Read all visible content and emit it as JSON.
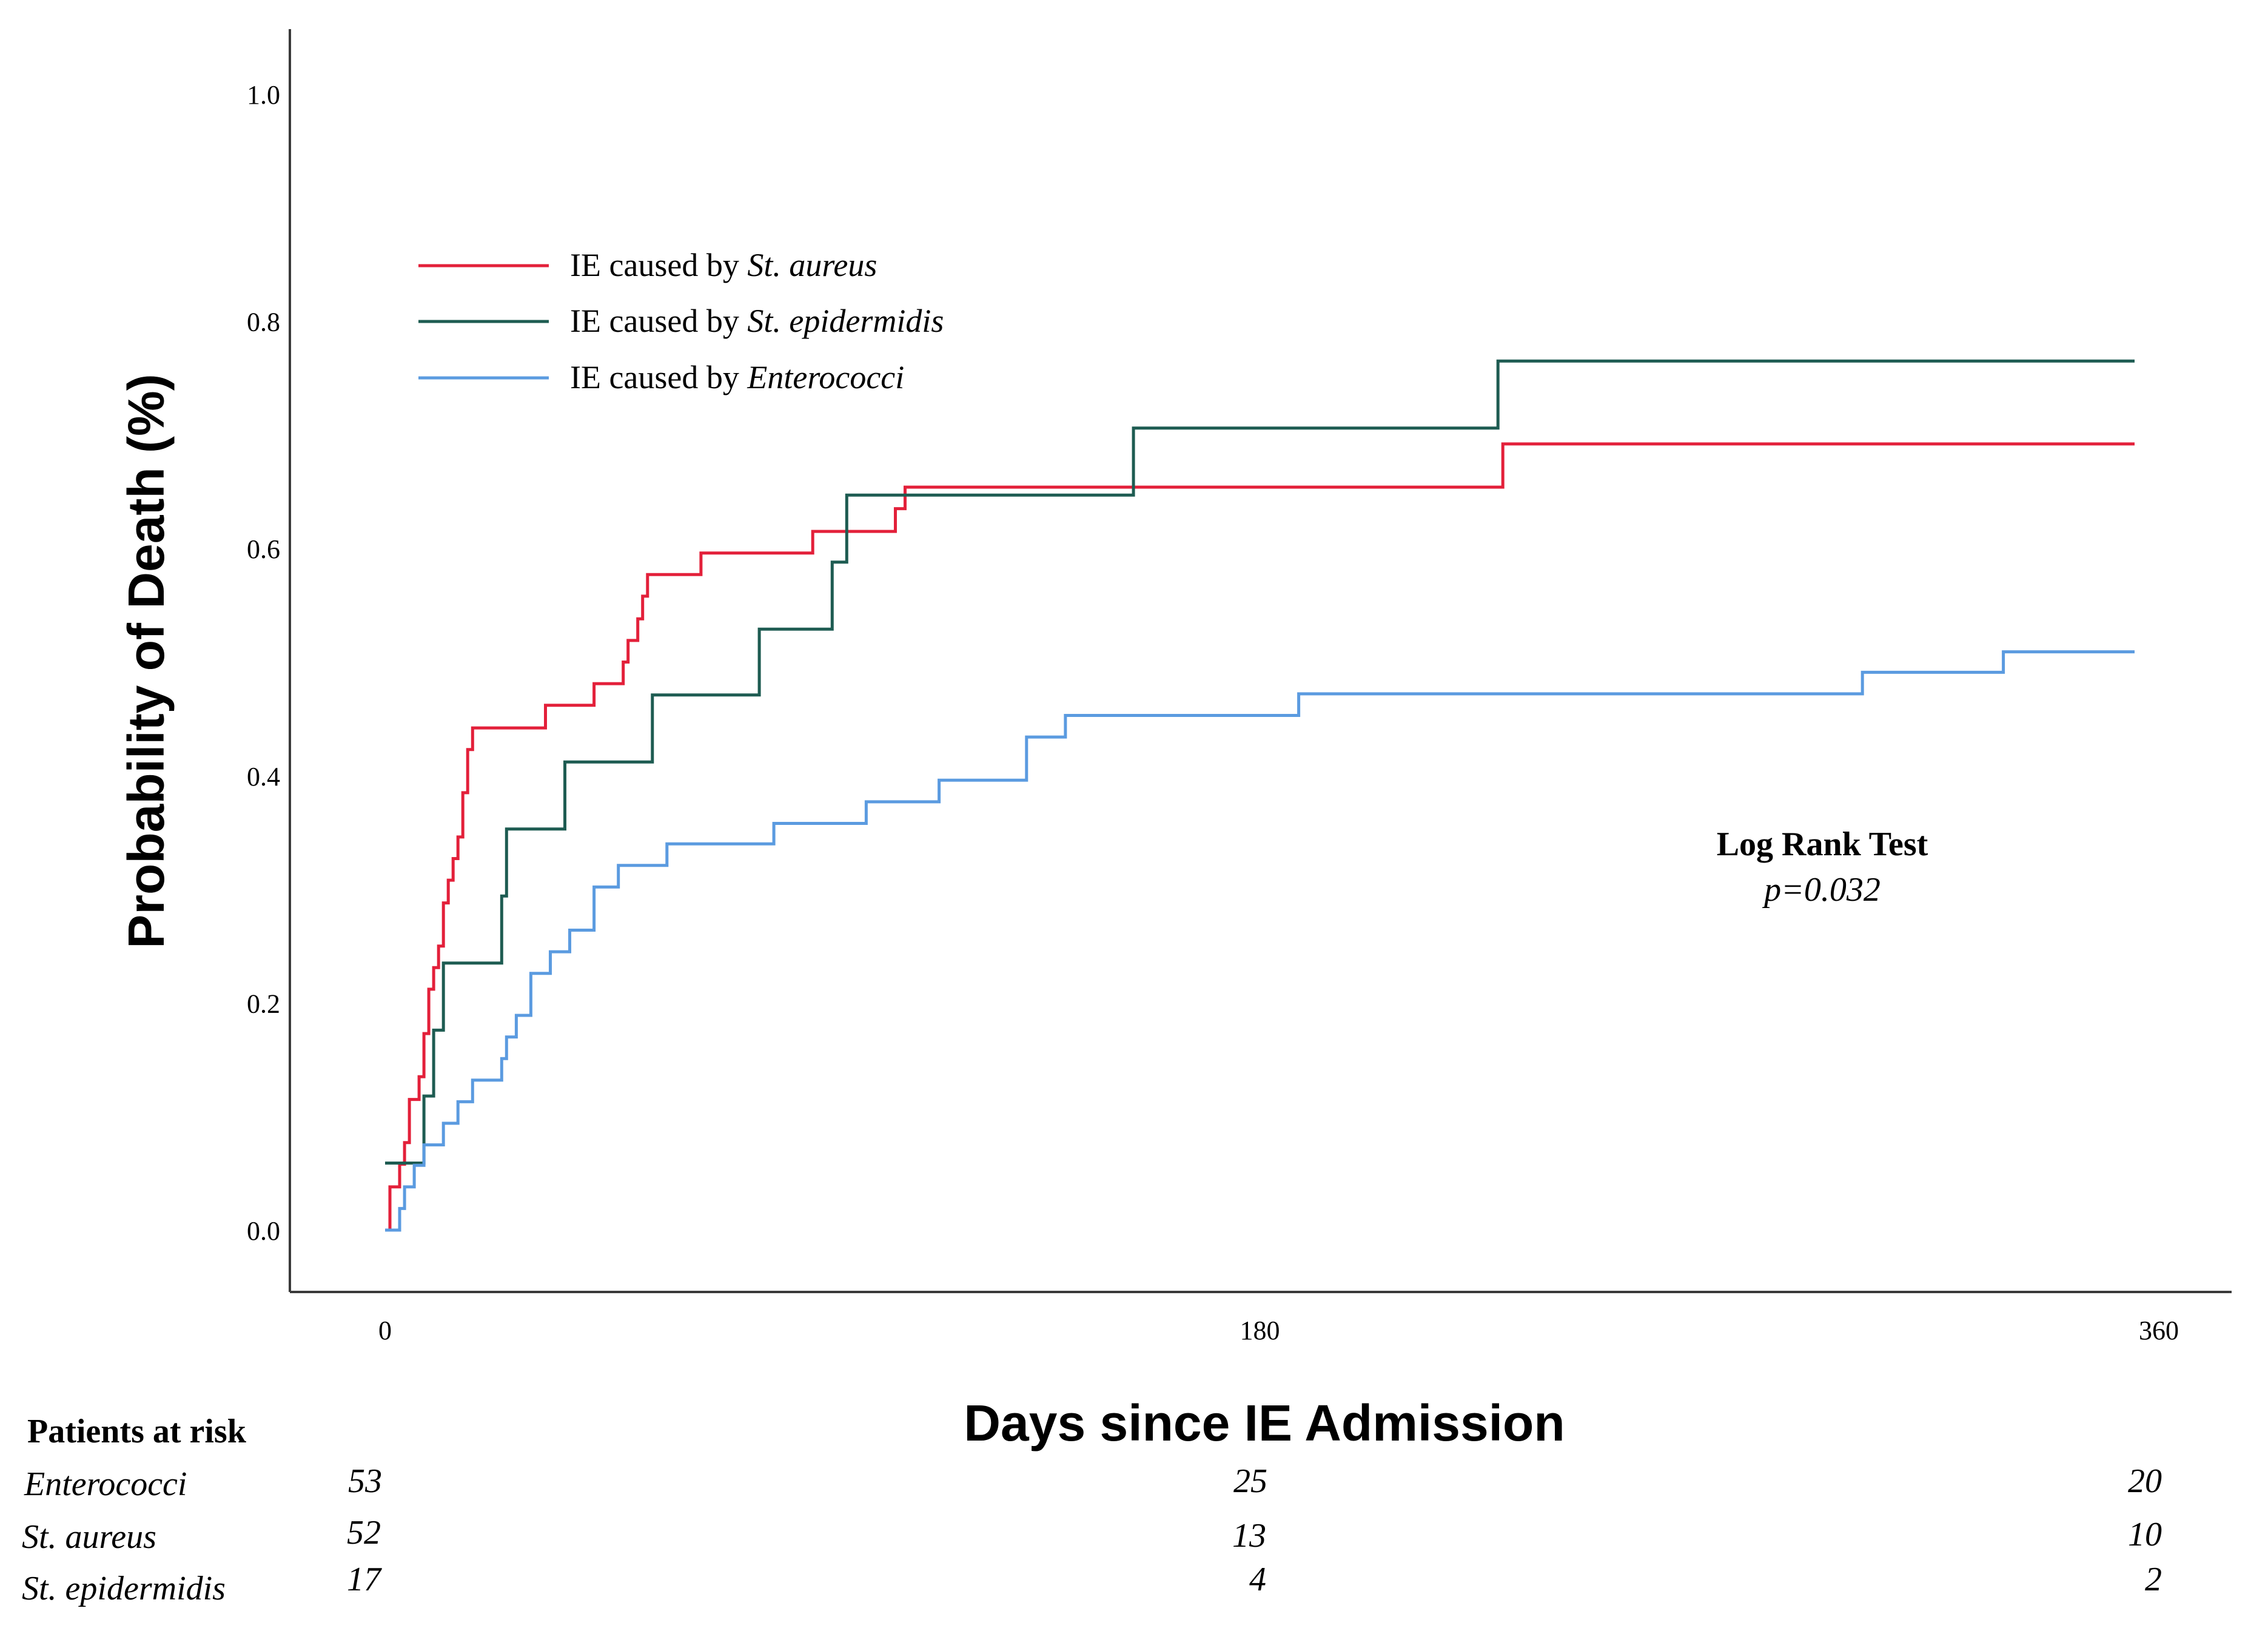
{
  "chart_data": {
    "type": "line",
    "subtype": "kaplan-meier-step",
    "title": "",
    "xlabel": "Days since IE Admission",
    "ylabel": "Probability of Death (%)",
    "xlim": [
      0,
      360
    ],
    "ylim": [
      0,
      1.0
    ],
    "x_ticks": [
      "0",
      "180",
      "360"
    ],
    "x_tick_values": [
      0,
      180,
      360
    ],
    "y_ticks": [
      "0.0",
      "0.2",
      "0.4",
      "0.6",
      "0.8",
      "1.0"
    ],
    "y_tick_values": [
      0.0,
      0.2,
      0.4,
      0.6,
      0.8,
      1.0
    ],
    "grid": false,
    "legend_position": "top-left",
    "legend": [
      {
        "prefix": "IE caused by ",
        "organism": "St. aureus",
        "series": "St. aureus"
      },
      {
        "prefix": "IE caused by ",
        "organism": "St. epidermidis",
        "series": "St. epidermidis"
      },
      {
        "prefix": "IE caused by ",
        "organism": "Enterococci",
        "series": "Enterococci"
      }
    ],
    "series": [
      {
        "name": "St. aureus",
        "color": "#e3203a",
        "x": [
          0,
          1,
          3,
          4,
          5,
          7,
          8,
          9,
          10,
          11,
          12,
          13,
          14,
          15,
          16,
          17,
          18,
          19,
          20,
          21,
          22,
          23,
          24,
          33,
          43,
          49,
          50,
          52,
          53,
          54,
          65,
          88,
          105,
          107,
          230,
          360
        ],
        "y": [
          0,
          0.038,
          0.058,
          0.077,
          0.115,
          0.135,
          0.173,
          0.212,
          0.231,
          0.25,
          0.288,
          0.308,
          0.327,
          0.346,
          0.385,
          0.423,
          0.442,
          0.442,
          0.442,
          0.442,
          0.442,
          0.442,
          0.442,
          0.462,
          0.481,
          0.5,
          0.519,
          0.538,
          0.558,
          0.577,
          0.596,
          0.615,
          0.635,
          0.654,
          0.692,
          0.692
        ]
      },
      {
        "name": "St. epidermidis",
        "color": "#1e5c52",
        "x": [
          0,
          8,
          10,
          12,
          24,
          25,
          37,
          55,
          77,
          92,
          95,
          154,
          229,
          360
        ],
        "y": [
          0.059,
          0.118,
          0.176,
          0.235,
          0.294,
          0.353,
          0.412,
          0.471,
          0.529,
          0.588,
          0.647,
          0.706,
          0.765,
          0.765
        ]
      },
      {
        "name": "Enterococci",
        "color": "#5b9be0",
        "x": [
          0,
          3,
          4,
          6,
          8,
          12,
          15,
          18,
          24,
          25,
          27,
          30,
          34,
          38,
          43,
          48,
          58,
          80,
          99,
          114,
          120,
          132,
          140,
          188,
          304,
          333,
          360
        ],
        "y": [
          0,
          0.019,
          0.038,
          0.057,
          0.075,
          0.094,
          0.113,
          0.132,
          0.151,
          0.17,
          0.189,
          0.226,
          0.245,
          0.264,
          0.302,
          0.321,
          0.34,
          0.358,
          0.377,
          0.396,
          0.396,
          0.434,
          0.453,
          0.472,
          0.491,
          0.509,
          0.509
        ]
      }
    ],
    "annotation": {
      "title": "Log Rank Test",
      "text": "p=0.032"
    },
    "risk_table": {
      "title": "Patients at risk",
      "rows": [
        {
          "label": "Enterococci",
          "values": [
            "53",
            "25",
            "20"
          ]
        },
        {
          "label": "St. aureus",
          "values": [
            "52",
            "13",
            "10"
          ]
        },
        {
          "label": "St. epidermidis",
          "values": [
            "17",
            "4",
            "2"
          ]
        }
      ]
    }
  }
}
